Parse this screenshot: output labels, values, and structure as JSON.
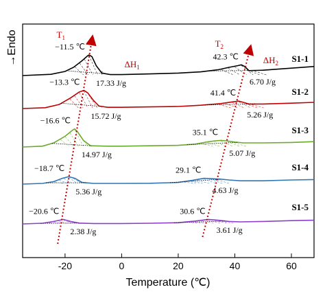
{
  "chart_data": {
    "type": "line",
    "xlabel": "Temperature (℃)",
    "ylabel": "→Endo",
    "xlim": [
      -35,
      68
    ],
    "xticks": [
      "-20",
      "0",
      "20",
      "40",
      "60"
    ],
    "xtick_values": [
      -20,
      0,
      20,
      40,
      60
    ],
    "grid": false,
    "arrow_labels": {
      "t1": "T",
      "t1_sub": "1",
      "t2": "T",
      "t2_sub": "2"
    },
    "enthalpy_labels": {
      "dh1": "ΔH",
      "dh1_sub": "1",
      "dh2": "ΔH",
      "dh2_sub": "2"
    },
    "series": [
      {
        "name": "S1-1",
        "color": "#000000",
        "peak1": {
          "temp": -11.5,
          "label": "−11.5 ℃",
          "enthalpy": "17.33 J/g"
        },
        "peak2": {
          "temp": 42.3,
          "label": "42.3 ℃",
          "enthalpy": "6.70 J/g"
        },
        "points": [
          [
            -35,
            0
          ],
          [
            -25,
            0.15
          ],
          [
            -20,
            0.5
          ],
          [
            -17,
            1.0
          ],
          [
            -14,
            1.8
          ],
          [
            -12,
            2.4
          ],
          [
            -11.5,
            2.5
          ],
          [
            -10.5,
            2.3
          ],
          [
            -9,
            1.2
          ],
          [
            -7,
            0.3
          ],
          [
            -4,
            0.12
          ],
          [
            0,
            0.12
          ],
          [
            10,
            0.2
          ],
          [
            20,
            0.3
          ],
          [
            28,
            0.45
          ],
          [
            34,
            0.7
          ],
          [
            38,
            1.0
          ],
          [
            41,
            1.2
          ],
          [
            42.3,
            1.3
          ],
          [
            43.5,
            1.1
          ],
          [
            45,
            0.6
          ],
          [
            50,
            0.65
          ],
          [
            60,
            0.9
          ],
          [
            68,
            1.1
          ]
        ]
      },
      {
        "name": "S1-2",
        "color": "#c00000",
        "peak1": {
          "temp": -13.3,
          "label": "−13.3 ℃",
          "enthalpy": "15.72 J/g"
        },
        "peak2": {
          "temp": 41.4,
          "label": "41.4 ℃",
          "enthalpy": "5.26 J/g"
        },
        "points": [
          [
            -35,
            0
          ],
          [
            -27,
            0.1
          ],
          [
            -22,
            0.5
          ],
          [
            -18,
            1.3
          ],
          [
            -15,
            2.0
          ],
          [
            -13.3,
            2.2
          ],
          [
            -12,
            1.9
          ],
          [
            -10,
            1.0
          ],
          [
            -8,
            0.3
          ],
          [
            -5,
            0.15
          ],
          [
            0,
            0.15
          ],
          [
            10,
            0.2
          ],
          [
            20,
            0.25
          ],
          [
            28,
            0.4
          ],
          [
            35,
            0.6
          ],
          [
            39,
            0.8
          ],
          [
            41.4,
            0.9
          ],
          [
            43,
            0.75
          ],
          [
            45,
            0.55
          ],
          [
            50,
            0.55
          ],
          [
            60,
            0.65
          ],
          [
            68,
            0.75
          ]
        ]
      },
      {
        "name": "S1-3",
        "color": "#6aaa2a",
        "peak1": {
          "temp": -16.6,
          "label": "−16.6 ℃",
          "enthalpy": "14.97 J/g"
        },
        "peak2": {
          "temp": 35.1,
          "label": "35.1 ℃",
          "enthalpy": "5.07 J/g"
        },
        "points": [
          [
            -35,
            0
          ],
          [
            -28,
            0.1
          ],
          [
            -24,
            0.5
          ],
          [
            -20,
            1.3
          ],
          [
            -17.5,
            2.0
          ],
          [
            -16.6,
            2.2
          ],
          [
            -15.5,
            1.8
          ],
          [
            -13.5,
            0.8
          ],
          [
            -11,
            0.15
          ],
          [
            -5,
            0.1
          ],
          [
            0,
            0.1
          ],
          [
            10,
            0.15
          ],
          [
            20,
            0.2
          ],
          [
            26,
            0.35
          ],
          [
            30,
            0.6
          ],
          [
            33,
            0.75
          ],
          [
            35.1,
            0.8
          ],
          [
            37,
            0.75
          ],
          [
            40,
            0.6
          ],
          [
            43,
            0.5
          ],
          [
            50,
            0.5
          ],
          [
            60,
            0.55
          ],
          [
            68,
            0.65
          ]
        ]
      },
      {
        "name": "S1-4",
        "color": "#2e75b6",
        "peak1": {
          "temp": -18.7,
          "label": "−18.7 ℃",
          "enthalpy": "5.36 J/g"
        },
        "peak2": {
          "temp": 29.1,
          "label": "29.1 ℃",
          "enthalpy": "4.63 J/g"
        },
        "points": [
          [
            -35,
            0
          ],
          [
            -28,
            0.08
          ],
          [
            -24,
            0.3
          ],
          [
            -21,
            0.7
          ],
          [
            -18.7,
            0.9
          ],
          [
            -16.5,
            0.7
          ],
          [
            -14,
            0.2
          ],
          [
            -10,
            0.08
          ],
          [
            0,
            0.08
          ],
          [
            10,
            0.1
          ],
          [
            20,
            0.2
          ],
          [
            25,
            0.45
          ],
          [
            29.1,
            0.7
          ],
          [
            32,
            0.65
          ],
          [
            35,
            0.6
          ],
          [
            38,
            0.5
          ],
          [
            42,
            0.4
          ],
          [
            50,
            0.4
          ],
          [
            60,
            0.5
          ],
          [
            68,
            0.55
          ]
        ]
      },
      {
        "name": "S1-5",
        "color": "#8b3fc8",
        "peak1": {
          "temp": -20.6,
          "label": "−20.6 ℃",
          "enthalpy": "2.38 J/g"
        },
        "peak2": {
          "temp": 30.6,
          "label": "30.6 ℃",
          "enthalpy": "3.61 J/g"
        },
        "points": [
          [
            -35,
            0
          ],
          [
            -28,
            0.08
          ],
          [
            -24,
            0.3
          ],
          [
            -20.6,
            0.55
          ],
          [
            -18,
            0.3
          ],
          [
            -15,
            0.1
          ],
          [
            -10,
            0.05
          ],
          [
            0,
            0.05
          ],
          [
            10,
            0.08
          ],
          [
            20,
            0.15
          ],
          [
            26,
            0.35
          ],
          [
            30.6,
            0.55
          ],
          [
            34,
            0.45
          ],
          [
            38,
            0.3
          ],
          [
            42,
            0.25
          ],
          [
            50,
            0.3
          ],
          [
            60,
            0.4
          ],
          [
            68,
            0.45
          ]
        ]
      }
    ]
  }
}
